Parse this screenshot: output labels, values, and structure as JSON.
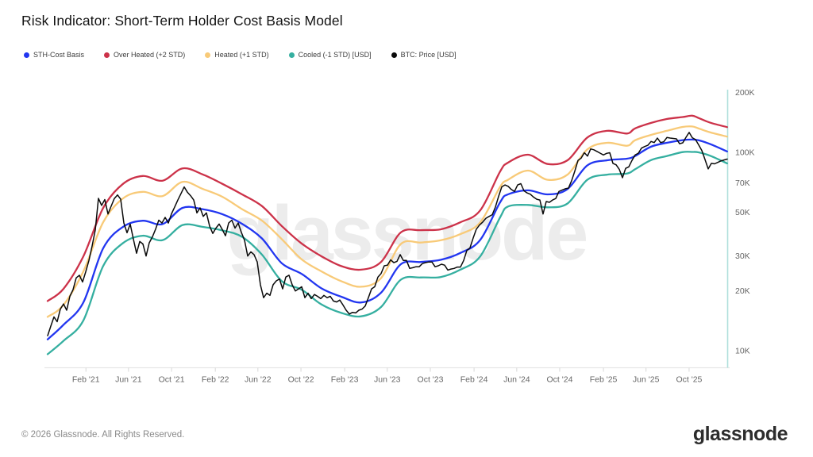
{
  "header": {
    "title": "Risk Indicator: Short-Term Holder Cost Basis Model"
  },
  "legend": [
    {
      "label": "STH-Cost Basis",
      "color": "#2236f0"
    },
    {
      "label": "Over Heated (+2 STD)",
      "color": "#cc3249"
    },
    {
      "label": "Heated (+1 STD)",
      "color": "#f8ca78"
    },
    {
      "label": "Cooled (-1 STD) [USD]",
      "color": "#35afa0"
    },
    {
      "label": "BTC: Price [USD]",
      "color": "#0a0a0a"
    }
  ],
  "watermark": "glassnode",
  "footer": {
    "copyright": "© 2026 Glassnode. All Rights Reserved.",
    "logo": "glassnode"
  },
  "colors": {
    "right_axis_line": "#aedfdb",
    "bottom_axis_line": "#e7e7e7",
    "tick_mark": "#d8d8d8",
    "axis_text": "#666666",
    "watermark": "#ececec"
  },
  "chart_data": {
    "type": "line",
    "title": "Risk Indicator: Short-Term Holder Cost Basis Model",
    "y_axis": {
      "scale": "log",
      "unit": "USD",
      "side": "right",
      "ticks": [
        {
          "label": "200K",
          "value_k": 200
        },
        {
          "label": "100K",
          "value_k": 100
        },
        {
          "label": "70K",
          "value_k": 70
        },
        {
          "label": "50K",
          "value_k": 50
        },
        {
          "label": "30K",
          "value_k": 30
        },
        {
          "label": "20K",
          "value_k": 20
        },
        {
          "label": "10K",
          "value_k": 10
        }
      ]
    },
    "x_axis": {
      "range_t": [
        2020.789,
        2026.042
      ],
      "ticks": [
        {
          "label": "Feb '21",
          "t": 2021.085
        },
        {
          "label": "Jun '21",
          "t": 2021.414
        },
        {
          "label": "Oct '21",
          "t": 2021.747
        },
        {
          "label": "Feb '22",
          "t": 2022.085
        },
        {
          "label": "Jun '22",
          "t": 2022.414
        },
        {
          "label": "Oct '22",
          "t": 2022.747
        },
        {
          "label": "Feb '23",
          "t": 2023.085
        },
        {
          "label": "Jun '23",
          "t": 2023.414
        },
        {
          "label": "Oct '23",
          "t": 2023.747
        },
        {
          "label": "Feb '24",
          "t": 2024.085
        },
        {
          "label": "Jun '24",
          "t": 2024.415
        },
        {
          "label": "Oct '24",
          "t": 2024.747
        },
        {
          "label": "Feb '25",
          "t": 2025.085
        },
        {
          "label": "Jun '25",
          "t": 2025.414
        },
        {
          "label": "Oct '25",
          "t": 2025.747
        }
      ]
    },
    "band_t": [
      2020.789,
      2020.911,
      2021.065,
      2021.218,
      2021.372,
      2021.525,
      2021.678,
      2021.832,
      2021.985,
      2022.139,
      2022.292,
      2022.445,
      2022.599,
      2022.752,
      2022.906,
      2023.059,
      2023.212,
      2023.366,
      2023.519,
      2023.672,
      2023.826,
      2023.979,
      2024.133,
      2024.286,
      2024.347,
      2024.501,
      2024.654,
      2024.807,
      2024.961,
      2025.114,
      2025.267,
      2025.329,
      2025.451,
      2025.574,
      2025.697,
      2025.771,
      2025.82,
      2025.912,
      2026.041
    ],
    "series": [
      {
        "name": "Over Heated (+2 STD)",
        "color": "#cc3249",
        "style": "smooth",
        "width": 2.3,
        "values_k_usd": [
          17.8,
          20.5,
          29.9,
          52.4,
          69.4,
          76.0,
          72.0,
          83.0,
          77.5,
          69.4,
          61.4,
          53.6,
          42.5,
          34.7,
          29.9,
          26.7,
          25.6,
          28.0,
          39.5,
          40.5,
          40.9,
          44.4,
          51.0,
          80.0,
          88.7,
          97.3,
          87.3,
          91.2,
          118.8,
          128.3,
          124.4,
          132.0,
          140.6,
          147.2,
          150.6,
          153.0,
          149.0,
          141.0,
          134.0
        ]
      },
      {
        "name": "Heated (+1 STD)",
        "color": "#f8ca78",
        "style": "smooth",
        "width": 2.3,
        "values_k_usd": [
          14.8,
          17.0,
          25.1,
          44.4,
          58.6,
          63.2,
          60.2,
          71.0,
          65.5,
          59.7,
          51.7,
          45.3,
          36.5,
          28.9,
          25.1,
          22.4,
          21.0,
          23.2,
          34.5,
          35.1,
          36.0,
          38.7,
          44.4,
          67.0,
          72.7,
          80.9,
          72.7,
          77.2,
          103.5,
          111.7,
          107.9,
          115.0,
          122.4,
          128.3,
          134.3,
          135.0,
          132.0,
          126.0,
          120.0
        ]
      },
      {
        "name": "Cooled (-1 STD) [USD]",
        "color": "#35afa0",
        "style": "smooth",
        "width": 2.3,
        "values_k_usd": [
          9.6,
          11.2,
          14.2,
          26.7,
          34.9,
          38.0,
          36.1,
          43.0,
          42.1,
          40.4,
          37.5,
          30.5,
          22.4,
          20.3,
          17.1,
          15.5,
          14.9,
          16.6,
          22.8,
          23.4,
          23.5,
          25.6,
          29.9,
          47.0,
          53.3,
          54.3,
          52.8,
          55.2,
          72.7,
          77.2,
          78.1,
          82.1,
          91.3,
          95.8,
          100.3,
          100.5,
          100.0,
          96.0,
          88.0
        ]
      },
      {
        "name": "STH-Cost Basis",
        "color": "#2236f0",
        "style": "smooth",
        "width": 2.3,
        "values_k_usd": [
          11.4,
          13.5,
          17.5,
          32.8,
          42.1,
          45.2,
          43.5,
          52.5,
          51.7,
          48.8,
          43.6,
          36.8,
          27.6,
          24.4,
          20.6,
          18.7,
          17.5,
          19.6,
          27.3,
          28.0,
          28.7,
          31.1,
          36.2,
          56.0,
          61.4,
          64.3,
          61.4,
          65.3,
          86.0,
          91.2,
          92.9,
          95.8,
          106.7,
          111.7,
          115.2,
          116.0,
          115.0,
          110.0,
          101.0
        ]
      }
    ],
    "price_series": {
      "name": "BTC: Price [USD]",
      "color": "#0a0a0a",
      "width": 1.5,
      "t0": 2020.789,
      "dt": 0.024546,
      "values_k_usd": [
        11.9,
        13.3,
        14.8,
        14.0,
        16.2,
        17.2,
        16.0,
        18.8,
        20.3,
        23.3,
        24.0,
        22.2,
        25.0,
        28.5,
        33.7,
        40.6,
        58.6,
        54.0,
        57.8,
        48.9,
        53.5,
        58.5,
        61.0,
        58.0,
        44.0,
        39.3,
        43.5,
        36.5,
        31.0,
        35.5,
        34.5,
        30.0,
        35.0,
        37.5,
        41.0,
        45.5,
        44.0,
        47.0,
        44.0,
        49.0,
        53.0,
        57.5,
        62.0,
        66.9,
        63.0,
        60.5,
        57.5,
        49.5,
        52.5,
        47.5,
        49.5,
        42.5,
        39.0,
        41.5,
        43.5,
        40.8,
        38.0,
        44.0,
        45.5,
        41.5,
        44.0,
        39.5,
        36.0,
        30.0,
        31.5,
        30.5,
        28.0,
        21.5,
        18.5,
        19.5,
        19.0,
        21.5,
        22.5,
        23.0,
        20.5,
        23.5,
        24.0,
        21.5,
        20.0,
        20.5,
        21.0,
        18.5,
        19.5,
        18.3,
        19.2,
        18.8,
        18.3,
        19.0,
        18.5,
        18.8,
        17.8,
        17.6,
        18.0,
        17.0,
        16.0,
        15.3,
        15.6,
        15.5,
        16.0,
        16.2,
        16.8,
        18.5,
        20.5,
        21.0,
        23.5,
        24.5,
        26.8,
        27.0,
        28.7,
        27.8,
        28.2,
        30.5,
        28.5,
        28.5,
        26.0,
        26.2,
        26.5,
        26.5,
        27.5,
        27.8,
        28.0,
        28.0,
        26.5,
        26.8,
        27.3,
        27.0,
        25.5,
        25.8,
        26.0,
        26.4,
        26.4,
        28.5,
        32.0,
        33.0,
        37.0,
        41.0,
        43.0,
        44.5,
        46.5,
        47.5,
        48.5,
        53.0,
        60.0,
        67.0,
        68.5,
        67.4,
        65.0,
        63.5,
        68.5,
        69.5,
        64.0,
        62.4,
        61.5,
        59.5,
        58.0,
        57.5,
        48.9,
        56.5,
        56.0,
        57.5,
        58.5,
        63.5,
        64.5,
        65.5,
        66.0,
        72.0,
        80.5,
        91.0,
        93.5,
        99.5,
        95.8,
        104.0,
        103.0,
        101.0,
        99.0,
        97.0,
        98.8,
        99.5,
        88.0,
        86.5,
        82.1,
        74.5,
        83.0,
        84.5,
        91.0,
        97.0,
        99.0,
        105.0,
        107.0,
        108.5,
        113.4,
        112.0,
        118.0,
        112.0,
        113.0,
        118.8,
        118.0,
        117.5,
        117.0,
        110.5,
        111.7,
        119.0,
        126.0,
        118.5,
        116.0,
        109.0,
        102.0,
        92.0,
        82.5,
        88.0,
        87.5,
        89.0,
        90.5,
        91.5,
        92.5
      ]
    }
  }
}
